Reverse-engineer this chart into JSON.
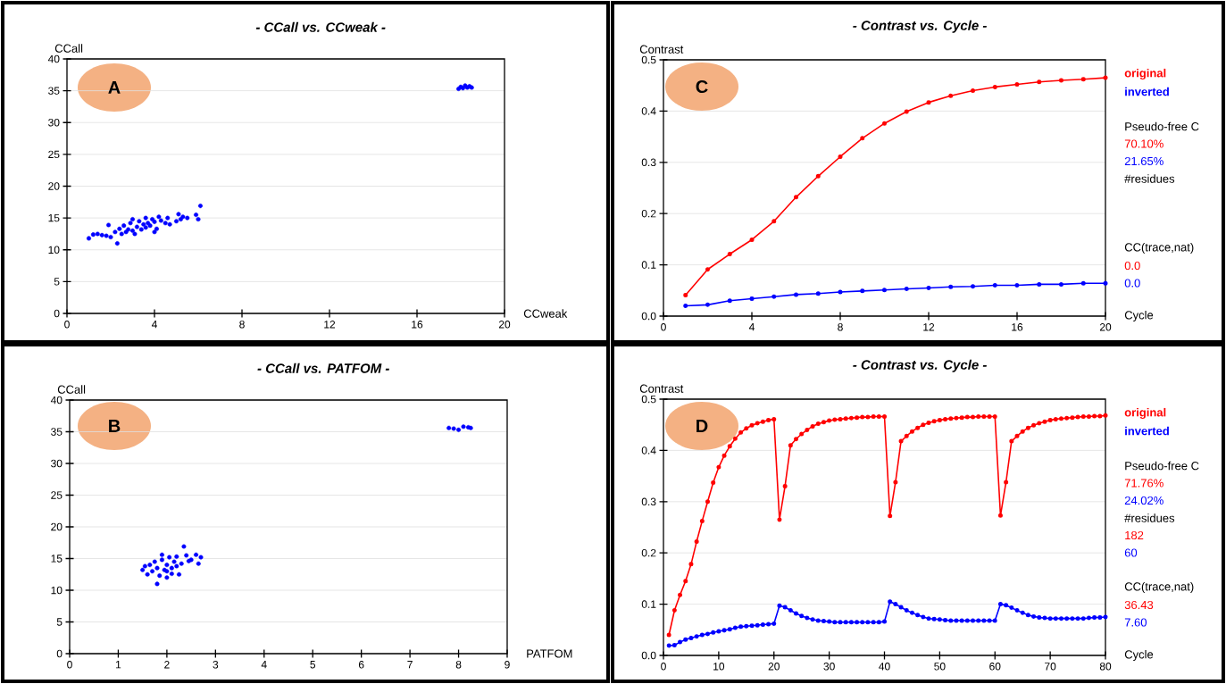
{
  "chart_data": [
    {
      "type": "scatter",
      "title": "- CCall vs. CCweak -",
      "xlabel": "CCweak",
      "ylabel": "CCall",
      "annotations": [
        "A"
      ],
      "xlim": [
        0,
        20
      ],
      "xticks": [
        0,
        4,
        8,
        12,
        16,
        20
      ],
      "ylim": [
        0,
        40
      ],
      "yticks": [
        0,
        5,
        10,
        15,
        20,
        25,
        30,
        35,
        40
      ],
      "grid": "y",
      "marker": "circle",
      "series": [
        {
          "color": "#0000ff",
          "x": [
            1.0,
            1.2,
            1.4,
            1.6,
            1.8,
            1.9,
            2.0,
            2.2,
            2.3,
            2.4,
            2.5,
            2.6,
            2.7,
            2.8,
            2.9,
            3.0,
            3.0,
            3.1,
            3.2,
            3.3,
            3.4,
            3.5,
            3.6,
            3.6,
            3.7,
            3.8,
            3.9,
            4.0,
            4.0,
            4.1,
            4.2,
            4.3,
            4.5,
            4.6,
            4.7,
            5.0,
            5.1,
            5.2,
            5.3,
            5.5,
            5.9,
            6.0,
            6.1,
            17.9,
            18.0,
            18.1,
            18.2,
            18.3,
            18.4,
            18.5
          ],
          "values": [
            11.8,
            12.4,
            12.5,
            12.3,
            12.2,
            13.9,
            12.0,
            12.8,
            11.0,
            13.3,
            12.5,
            13.8,
            12.8,
            13.2,
            14.2,
            13.0,
            14.8,
            12.5,
            13.6,
            14.5,
            13.2,
            14.0,
            13.5,
            15.0,
            14.2,
            13.8,
            14.8,
            12.8,
            14.4,
            13.3,
            15.2,
            14.6,
            14.2,
            15.0,
            14.0,
            14.5,
            15.6,
            14.8,
            15.2,
            15.0,
            15.5,
            14.8,
            16.9,
            35.3,
            35.6,
            35.4,
            35.8,
            35.5,
            35.7,
            35.5
          ]
        }
      ]
    },
    {
      "type": "scatter",
      "title": "- CCall vs. PATFOM -",
      "xlabel": "PATFOM",
      "ylabel": "CCall",
      "annotations": [
        "B"
      ],
      "xlim": [
        0,
        9
      ],
      "xticks": [
        0,
        1,
        2,
        3,
        4,
        5,
        6,
        7,
        8,
        9
      ],
      "ylim": [
        0,
        40
      ],
      "yticks": [
        0,
        5,
        10,
        15,
        20,
        25,
        30,
        35,
        40
      ],
      "grid": "y",
      "marker": "circle",
      "series": [
        {
          "color": "#0000ff",
          "x": [
            1.5,
            1.55,
            1.6,
            1.65,
            1.7,
            1.75,
            1.8,
            1.8,
            1.85,
            1.9,
            1.9,
            1.95,
            2.0,
            2.0,
            2.0,
            2.05,
            2.1,
            2.1,
            2.15,
            2.2,
            2.2,
            2.25,
            2.3,
            2.35,
            2.4,
            2.45,
            2.5,
            2.6,
            2.65,
            2.7,
            7.8,
            7.9,
            8.0,
            8.1,
            8.2,
            8.25
          ],
          "values": [
            13.2,
            13.8,
            12.5,
            14.0,
            13.0,
            14.5,
            11.0,
            13.5,
            12.3,
            14.8,
            15.6,
            13.2,
            12.0,
            14.0,
            13.0,
            15.2,
            13.5,
            12.6,
            14.5,
            15.3,
            13.8,
            12.5,
            14.2,
            16.9,
            15.5,
            14.6,
            14.8,
            15.6,
            14.2,
            15.2,
            35.6,
            35.5,
            35.3,
            35.8,
            35.7,
            35.6
          ]
        }
      ]
    },
    {
      "type": "line",
      "title": "- Contrast vs. Cycle -",
      "xlabel": "Cycle",
      "ylabel": "Contrast",
      "annotations": [
        "C",
        "Pseudo-free C",
        "70.10%",
        "21.65%",
        "#residues",
        "CC(trace,nat)",
        "0.0",
        "0.0"
      ],
      "xlim": [
        0,
        20
      ],
      "xticks": [
        0,
        4,
        8,
        12,
        16,
        20
      ],
      "ylim": [
        0,
        0.5
      ],
      "yticks": [
        {
          "value": 0,
          "label": "0.0"
        },
        0.1,
        0.2,
        0.3,
        0.4,
        0.5
      ],
      "grid": "y",
      "marker": "circle",
      "legend": "right",
      "x": [
        1,
        2,
        3,
        4,
        5,
        6,
        7,
        8,
        9,
        10,
        11,
        12,
        13,
        14,
        15,
        16,
        17,
        18,
        19,
        20
      ],
      "series": [
        {
          "name": "original",
          "color": "#ff0000",
          "values": [
            0.041,
            0.091,
            0.121,
            0.149,
            0.185,
            0.232,
            0.273,
            0.311,
            0.347,
            0.376,
            0.399,
            0.417,
            0.43,
            0.44,
            0.447,
            0.452,
            0.457,
            0.46,
            0.462,
            0.465
          ]
        },
        {
          "name": "inverted",
          "color": "#0000ff",
          "values": [
            0.02,
            0.022,
            0.03,
            0.034,
            0.038,
            0.042,
            0.044,
            0.047,
            0.049,
            0.051,
            0.053,
            0.055,
            0.057,
            0.058,
            0.06,
            0.06,
            0.062,
            0.062,
            0.064,
            0.064
          ]
        }
      ]
    },
    {
      "type": "line",
      "title": "- Contrast vs. Cycle -",
      "xlabel": "Cycle",
      "ylabel": "Contrast",
      "annotations": [
        "D",
        "Pseudo-free C",
        "71.76%",
        "24.02%",
        "#residues",
        "182",
        "60",
        "CC(trace,nat)",
        "36.43",
        "7.60"
      ],
      "xlim": [
        0,
        80
      ],
      "xticks": [
        0,
        10,
        20,
        30,
        40,
        50,
        60,
        70,
        80
      ],
      "ylim": [
        0,
        0.5
      ],
      "yticks": [
        {
          "value": 0,
          "label": "0.0"
        },
        0.1,
        0.2,
        0.3,
        0.4,
        0.5
      ],
      "grid": "y",
      "marker": "circle",
      "legend": "right",
      "x": [
        1,
        2,
        3,
        4,
        5,
        6,
        7,
        8,
        9,
        10,
        11,
        12,
        13,
        14,
        15,
        16,
        17,
        18,
        19,
        20,
        21,
        22,
        23,
        24,
        25,
        26,
        27,
        28,
        29,
        30,
        31,
        32,
        33,
        34,
        35,
        36,
        37,
        38,
        39,
        40,
        41,
        42,
        43,
        44,
        45,
        46,
        47,
        48,
        49,
        50,
        51,
        52,
        53,
        54,
        55,
        56,
        57,
        58,
        59,
        60,
        61,
        62,
        63,
        64,
        65,
        66,
        67,
        68,
        69,
        70,
        71,
        72,
        73,
        74,
        75,
        76,
        77,
        78,
        79,
        80
      ],
      "series": [
        {
          "name": "original",
          "color": "#ff0000",
          "values": [
            0.04,
            0.088,
            0.118,
            0.145,
            0.178,
            0.222,
            0.262,
            0.3,
            0.337,
            0.367,
            0.39,
            0.408,
            0.423,
            0.435,
            0.443,
            0.449,
            0.453,
            0.456,
            0.459,
            0.461,
            0.265,
            0.33,
            0.41,
            0.422,
            0.432,
            0.44,
            0.447,
            0.452,
            0.455,
            0.458,
            0.46,
            0.461,
            0.462,
            0.463,
            0.464,
            0.465,
            0.465,
            0.466,
            0.466,
            0.466,
            0.272,
            0.338,
            0.418,
            0.428,
            0.437,
            0.444,
            0.45,
            0.454,
            0.457,
            0.459,
            0.461,
            0.462,
            0.463,
            0.464,
            0.465,
            0.465,
            0.466,
            0.466,
            0.466,
            0.466,
            0.273,
            0.338,
            0.418,
            0.428,
            0.437,
            0.444,
            0.449,
            0.453,
            0.456,
            0.459,
            0.461,
            0.462,
            0.463,
            0.464,
            0.465,
            0.466,
            0.466,
            0.467,
            0.467,
            0.468
          ]
        },
        {
          "name": "inverted",
          "color": "#0000ff",
          "values": [
            0.019,
            0.02,
            0.026,
            0.031,
            0.034,
            0.037,
            0.04,
            0.042,
            0.045,
            0.047,
            0.049,
            0.051,
            0.054,
            0.056,
            0.057,
            0.058,
            0.059,
            0.06,
            0.061,
            0.062,
            0.097,
            0.094,
            0.088,
            0.082,
            0.077,
            0.073,
            0.07,
            0.068,
            0.067,
            0.066,
            0.065,
            0.065,
            0.065,
            0.065,
            0.065,
            0.065,
            0.065,
            0.065,
            0.065,
            0.066,
            0.105,
            0.1,
            0.094,
            0.088,
            0.083,
            0.079,
            0.075,
            0.072,
            0.071,
            0.07,
            0.069,
            0.068,
            0.068,
            0.068,
            0.068,
            0.068,
            0.068,
            0.068,
            0.068,
            0.068,
            0.1,
            0.098,
            0.093,
            0.088,
            0.083,
            0.079,
            0.076,
            0.074,
            0.073,
            0.072,
            0.072,
            0.072,
            0.072,
            0.072,
            0.072,
            0.072,
            0.073,
            0.074,
            0.074,
            0.075
          ]
        }
      ]
    }
  ]
}
